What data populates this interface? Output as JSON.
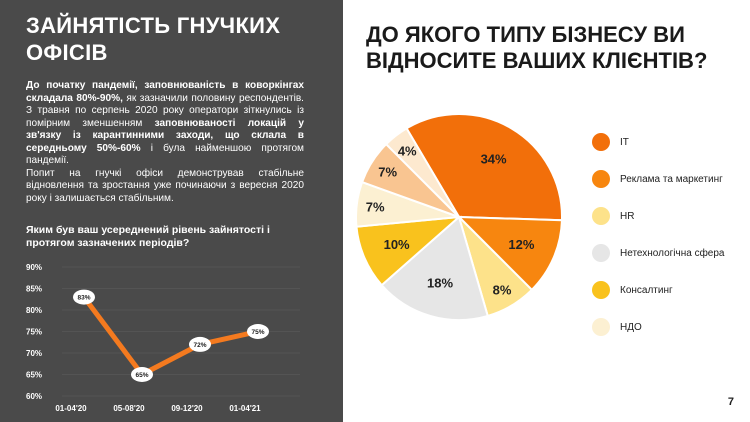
{
  "left": {
    "title": "ЗАЙНЯТІСТЬ ГНУЧКИХ ОФІСІВ",
    "body_parts": [
      {
        "text": "До початку пандемії, заповнюваність в коворкінгах складала 80%-90%,",
        "bold": true
      },
      {
        "text": " як зазначили половину респондентів. З травня по серпень 2020 року оператори зіткнулись із помірним зменшенням ",
        "bold": false
      },
      {
        "text": "заповнюваності локацій у зв'язку із карантинними заходи, що склала в середньому 50%-60%",
        "bold": true
      },
      {
        "text": " і була найменшою протягом пандемії.",
        "bold": false
      },
      {
        "text": "\nПопит на гнучкі офіси демонстрував стабільне відновлення та зростання уже починаючи з вересня 2020 року і залишається стабільним.",
        "bold": false
      }
    ],
    "question": "Яким був ваш усереднений рівень зайнятості і протягом зазначених періодів?"
  },
  "right": {
    "title": "ДО ЯКОГО ТИПУ БІЗНЕСУ ВИ ВІДНОСИТЕ ВАШИХ КЛІЄНТІВ?"
  },
  "page_number": "7",
  "colors": {
    "panel_bg": "#4a4a4a",
    "line": "#f47a1f",
    "grid": "#5e5e5e"
  },
  "chart_data": [
    {
      "type": "line",
      "title": "",
      "xlabel": "",
      "ylabel": "",
      "categories": [
        "01-04'20",
        "05-08'20",
        "09-12'20",
        "01-04'21"
      ],
      "series": [
        {
          "values": [
            83,
            65,
            72,
            75
          ]
        }
      ],
      "data_labels": [
        "83%",
        "65%",
        "72%",
        "75%"
      ],
      "ylim": [
        60,
        90
      ],
      "yticks": [
        "90%",
        "85%",
        "80%",
        "75%",
        "70%",
        "65%",
        "60%"
      ],
      "grid": true,
      "color": "#f47a1f"
    },
    {
      "type": "pie",
      "title": "ДО ЯКОГО ТИПУ БІЗНЕСУ ВИ ВІДНОСИТЕ ВАШИХ КЛІЄНТІВ?",
      "slices": [
        {
          "label": "ІТ",
          "value": 34,
          "text": "34%",
          "color": "#f26f0a"
        },
        {
          "label": "Реклама та маркетинг",
          "value": 12,
          "text": "12%",
          "color": "#f7860f"
        },
        {
          "label": "HR",
          "value": 8,
          "text": "8%",
          "color": "#fde28a"
        },
        {
          "label": "Нетехнологічна сфера",
          "value": 18,
          "text": "18%",
          "color": "#e6e6e6"
        },
        {
          "label": "Консалтинг",
          "value": 10,
          "text": "10%",
          "color": "#f9c21d"
        },
        {
          "label": "НДО",
          "value": 7,
          "text": "7%",
          "color": "#fcf0d2"
        },
        {
          "label": "",
          "value": 7,
          "text": "7%",
          "color": "#f9c591"
        },
        {
          "label": "",
          "value": 4,
          "text": "4%",
          "color": "#fde9cf"
        }
      ],
      "legend_order": [
        0,
        1,
        2,
        3,
        4,
        5
      ],
      "legend_position": "right"
    }
  ]
}
